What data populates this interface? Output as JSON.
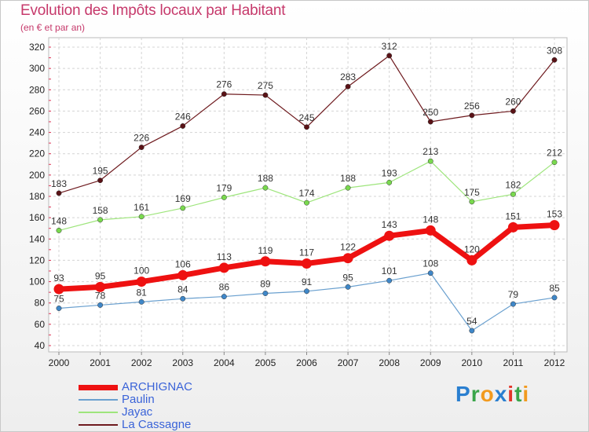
{
  "chart_data": {
    "type": "line",
    "title": "Evolution des Impôts locaux par Habitant",
    "subtitle": "(en € et par an)",
    "x": [
      "2000",
      "2001",
      "2002",
      "2003",
      "2004",
      "2005",
      "2006",
      "2007",
      "2008",
      "2009",
      "2010",
      "2011",
      "2012"
    ],
    "yticks": [
      40,
      60,
      80,
      100,
      120,
      140,
      160,
      180,
      200,
      220,
      240,
      260,
      280,
      300,
      320
    ],
    "ylim": [
      40,
      320
    ],
    "grid": true,
    "legend_position": "bottom-left",
    "series": [
      {
        "name": "La Cassagne",
        "color": "#6e1a1e",
        "marker": "#5a1216",
        "width": 1.2,
        "values": [
          183,
          195,
          226,
          246,
          276,
          275,
          245,
          283,
          312,
          250,
          256,
          260,
          308
        ]
      },
      {
        "name": "Jayac",
        "color": "#9ee57c",
        "marker": "#79d94e",
        "width": 1.2,
        "values": [
          148,
          158,
          161,
          169,
          179,
          188,
          174,
          188,
          193,
          213,
          175,
          182,
          212
        ]
      },
      {
        "name": "Paulin",
        "color": "#6aa0cf",
        "marker": "#3f87c8",
        "width": 1.2,
        "values": [
          75,
          78,
          81,
          84,
          86,
          89,
          91,
          95,
          101,
          108,
          54,
          79,
          85
        ]
      },
      {
        "name": "ARCHIGNAC",
        "color": "#ee1111",
        "marker": "#ee1111",
        "width": 7,
        "values": [
          93,
          95,
          100,
          106,
          113,
          119,
          117,
          122,
          143,
          148,
          120,
          151,
          153
        ]
      }
    ]
  },
  "legend": [
    {
      "name": "ARCHIGNAC",
      "color": "#ee1111",
      "width": 7
    },
    {
      "name": "Paulin",
      "color": "#6aa0cf",
      "width": 2
    },
    {
      "name": "Jayac",
      "color": "#9ee57c",
      "width": 2
    },
    {
      "name": "La Cassagne",
      "color": "#6e1a1e",
      "width": 2
    }
  ],
  "logo": {
    "letters": [
      "P",
      "r",
      "o",
      "x",
      "i",
      "t",
      "i"
    ],
    "colors": [
      "#2a7fd0",
      "#3aa54a",
      "#f29a1e",
      "#2a7fd0",
      "#e3362b",
      "#3aa54a",
      "#f29a1e"
    ]
  }
}
